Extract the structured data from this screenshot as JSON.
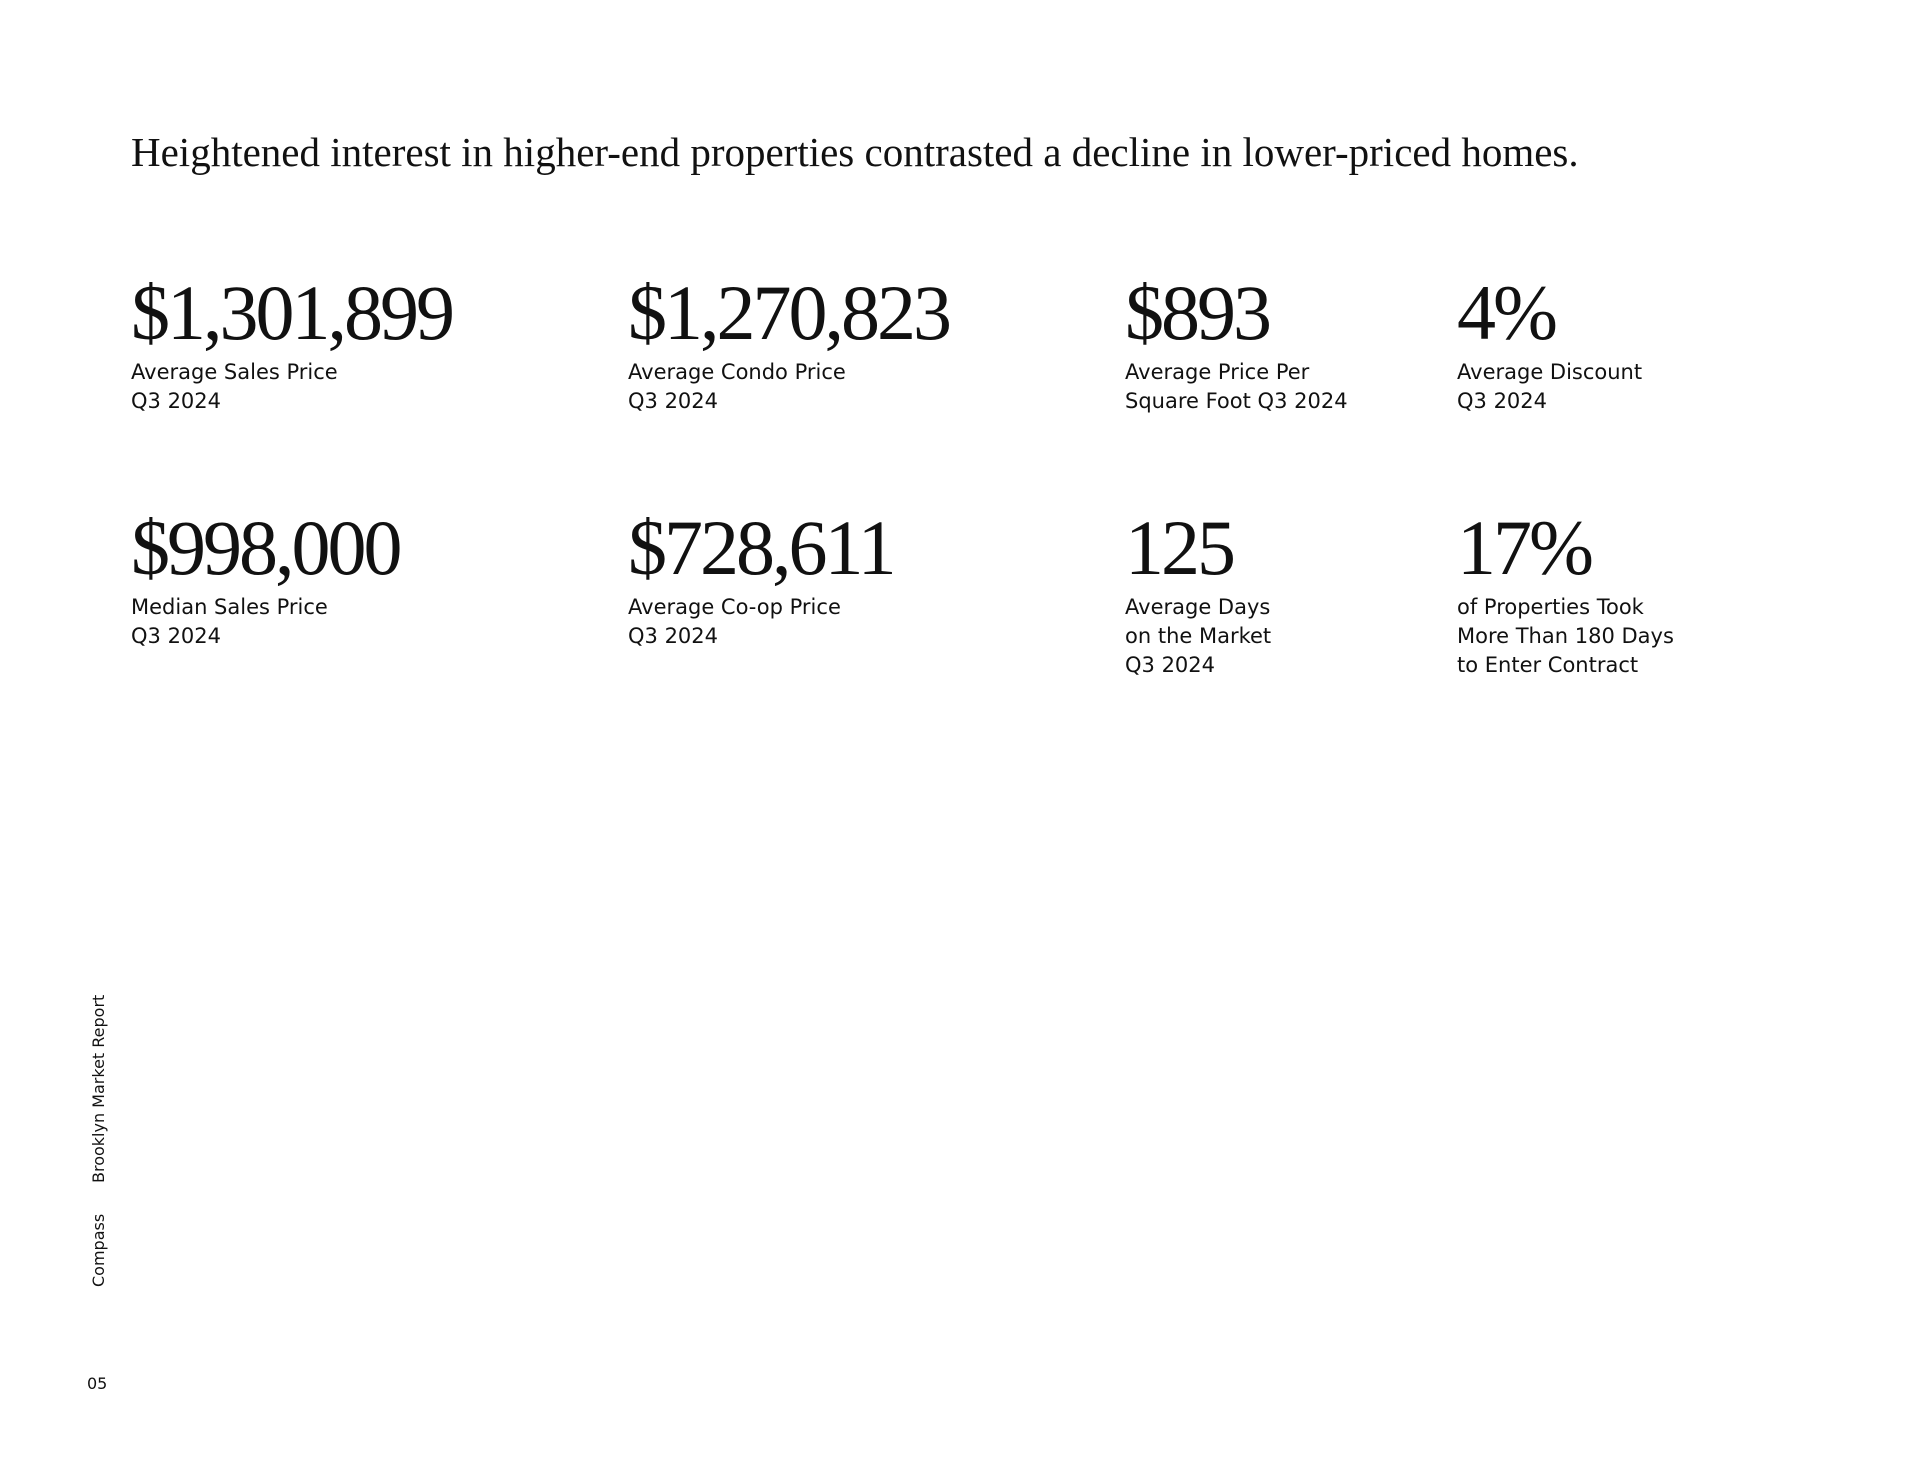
{
  "headline": "Heightened interest in higher-end properties contrasted a decline in lower-priced homes.",
  "stats": [
    [
      {
        "value": "$1,301,899",
        "label": [
          "Average Sales Price",
          "Q3 2024"
        ]
      },
      {
        "value": "$1,270,823",
        "label": [
          "Average Condo Price",
          "Q3 2024"
        ]
      },
      {
        "value": "$893",
        "label": [
          "Average Price Per",
          "Square Foot Q3 2024"
        ]
      },
      {
        "value": "4%",
        "label": [
          "Average Discount",
          "Q3 2024"
        ]
      }
    ],
    [
      {
        "value": "$998,000",
        "label": [
          "Median Sales Price",
          "Q3 2024"
        ]
      },
      {
        "value": "$728,611",
        "label": [
          "Average Co-op Price",
          "Q3 2024"
        ]
      },
      {
        "value": "125",
        "label": [
          "Average Days",
          "on the Market",
          "Q3 2024"
        ]
      },
      {
        "value": "17%",
        "label": [
          "of Properties Took",
          "More Than 180 Days",
          "to Enter Contract"
        ]
      }
    ]
  ],
  "sidebar": {
    "brand": "Compass",
    "report": "Brooklyn Market Report"
  },
  "page_number": "05"
}
